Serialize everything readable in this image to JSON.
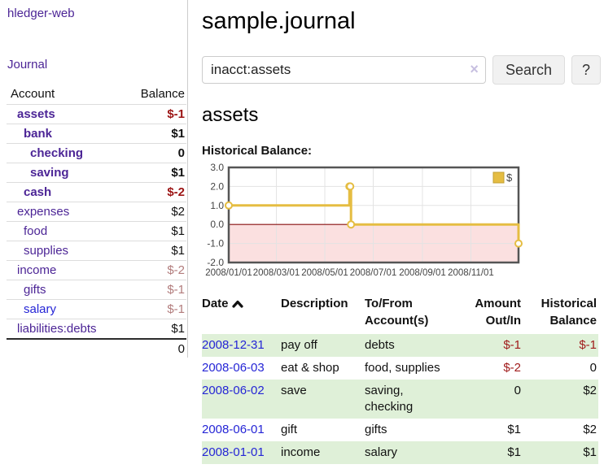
{
  "colors": {
    "accent_purple": "#4c2596",
    "link_blue": "#2525d6",
    "negative_strong": "#9c1414",
    "negative_muted": "#b27c7c",
    "register_negative": "#a01c1c",
    "row_green": "#dff0d8",
    "chart_gold": "#e5bd42",
    "chart_negative_region": "#fbe0e0",
    "chart_zero_line": "#8c1010",
    "button_bg": "#f1f1f1"
  },
  "sidebar": {
    "app_title": "hledger-web",
    "journal_link": "Journal",
    "table": {
      "headers": {
        "account": "Account",
        "balance": "Balance"
      },
      "rows": [
        {
          "account": "assets",
          "balance": "$-1",
          "level": 1
        },
        {
          "account": "bank",
          "balance": "$1",
          "level": 2
        },
        {
          "account": "checking",
          "balance": "0",
          "level": 3
        },
        {
          "account": "saving",
          "balance": "$1",
          "level": 3
        },
        {
          "account": "cash",
          "balance": "$-2",
          "level": 2
        },
        {
          "account": "expenses",
          "balance": "$2",
          "level": 1
        },
        {
          "account": "food",
          "balance": "$1",
          "level": 2
        },
        {
          "account": "supplies",
          "balance": "$1",
          "level": 2
        },
        {
          "account": "income",
          "balance": "$-2",
          "level": 1
        },
        {
          "account": "gifts",
          "balance": "$-1",
          "level": 2
        },
        {
          "account": "salary",
          "balance": "$-1",
          "level": 2
        },
        {
          "account": "liabilities:debts",
          "balance": "$1",
          "level": 1
        }
      ],
      "total": "0"
    }
  },
  "main": {
    "title": "sample.journal",
    "search": {
      "value": "inacct:assets",
      "clear_icon": "×",
      "search_button": "Search",
      "help_button": "?"
    },
    "account_heading": "assets",
    "chart_label": "Historical Balance:"
  },
  "chart_data": {
    "type": "line",
    "title": "Historical Balance",
    "step": true,
    "series": [
      {
        "name": "$",
        "color": "#e5bd42",
        "points": [
          [
            "2008-01-01",
            1
          ],
          [
            "2008-06-01",
            2
          ],
          [
            "2008-06-02",
            2
          ],
          [
            "2008-06-03",
            0
          ],
          [
            "2008-12-31",
            -1
          ]
        ]
      }
    ],
    "xlim": [
      "2008-01-01",
      "2008-12-31"
    ],
    "ylim": [
      -2,
      3
    ],
    "yticks": [
      3.0,
      2.0,
      1.0,
      0.0,
      -1.0,
      -2.0
    ],
    "xticks": [
      "2008/01/01",
      "2008/03/01",
      "2008/05/01",
      "2008/07/01",
      "2008/09/01",
      "2008/11/01"
    ],
    "legend": {
      "label": "$",
      "position": "top-right"
    },
    "grid": true,
    "negative_region_color": "#fbe0e0",
    "zero_line_color": "#8c1010"
  },
  "register": {
    "headers": {
      "date": "Date",
      "description": "Description",
      "accounts": "To/From Account(s)",
      "amount": "Amount Out/In",
      "balance": "Historical Balance"
    },
    "rows": [
      {
        "date": "2008-12-31",
        "description": "pay off",
        "accounts": "debts",
        "amount": "$-1",
        "balance": "$-1"
      },
      {
        "date": "2008-06-03",
        "description": "eat & shop",
        "accounts": "food, supplies",
        "amount": "$-2",
        "balance": "0"
      },
      {
        "date": "2008-06-02",
        "description": "save",
        "accounts": "saving,\nchecking",
        "amount": "0",
        "balance": "$2"
      },
      {
        "date": "2008-06-01",
        "description": "gift",
        "accounts": "gifts",
        "amount": "$1",
        "balance": "$2"
      },
      {
        "date": "2008-01-01",
        "description": "income",
        "accounts": "salary",
        "amount": "$1",
        "balance": "$1"
      }
    ]
  }
}
